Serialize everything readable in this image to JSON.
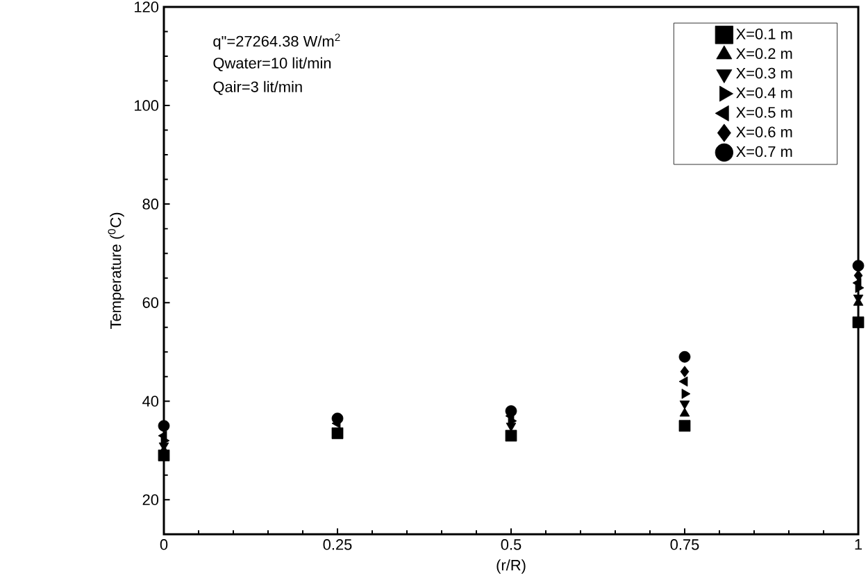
{
  "chart_data": {
    "type": "scatter",
    "xlabel": "(r/R)",
    "ylabel": "Temperature ($^{0}$C)",
    "annotations": [
      "q\"=27264.38 W/m$^{2}$",
      "Qwater=10 lit/min",
      "Qair=3 lit/min"
    ],
    "x": [
      0,
      0.25,
      0.5,
      0.75,
      1
    ],
    "series": [
      {
        "name": "X=0.1 m",
        "color": "#000000",
        "marker": "square",
        "values": [
          29,
          33.5,
          33,
          35,
          56
        ]
      },
      {
        "name": "X=0.2 m",
        "color": "#000000",
        "marker": "triangle",
        "values": [
          30,
          null,
          null,
          37.5,
          60
        ]
      },
      {
        "name": "X=0.3 m",
        "color": "#000000",
        "marker": "triangle-down",
        "values": [
          31,
          null,
          35,
          39.5,
          61
        ]
      },
      {
        "name": "X=0.4 m",
        "color": "#000000",
        "marker": "triangle-right",
        "values": [
          32,
          null,
          36,
          41.5,
          63
        ]
      },
      {
        "name": "X=0.5 m",
        "color": "#000000",
        "marker": "triangle-left",
        "values": [
          33,
          35.5,
          37,
          44,
          64
        ]
      },
      {
        "name": "X=0.6 m",
        "color": "#000000",
        "marker": "diamond",
        "values": [
          null,
          null,
          null,
          46,
          65.5
        ]
      },
      {
        "name": "X=0.7 m",
        "color": "#000000",
        "marker": "circle",
        "values": [
          35,
          36.5,
          38,
          49,
          67.5
        ]
      }
    ],
    "xlim": [
      0,
      1
    ],
    "ylim": [
      13,
      120
    ],
    "xticks": [
      0,
      {
        "value": 0.25,
        "label": "0.25"
      },
      {
        "value": 0.5,
        "label": "0.5"
      },
      {
        "value": 0.75,
        "label": "0.75"
      },
      1
    ],
    "yticks": [
      20,
      40,
      60,
      80,
      100,
      120
    ],
    "grid": false,
    "legend": "top right"
  }
}
